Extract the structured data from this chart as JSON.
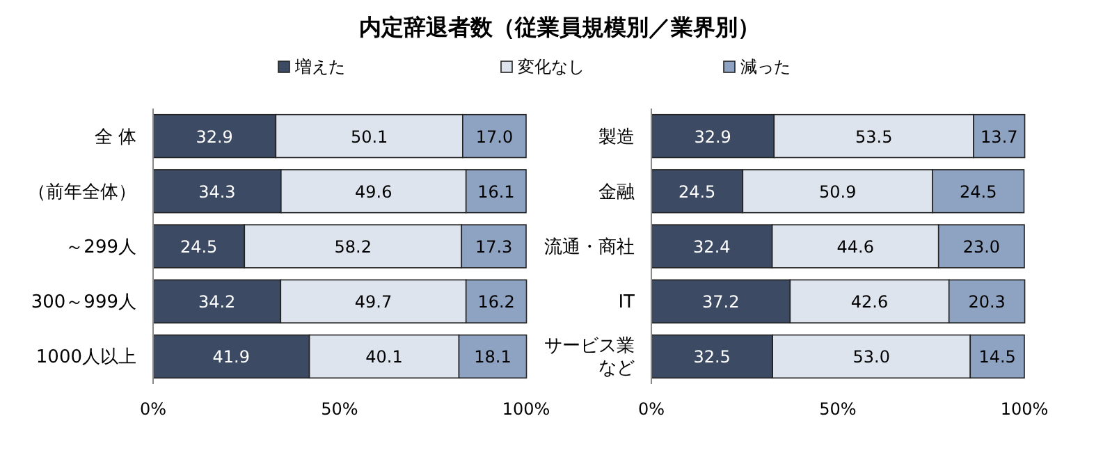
{
  "chart_data": [
    {
      "type": "bar",
      "orientation": "horizontal",
      "stacked": true,
      "title": "内定辞退者数（従業員規模別／業界別）",
      "legend": "top",
      "categories": [
        "全 体",
        "（前年全体）",
        "～299人",
        "300～999人",
        "1000人以上"
      ],
      "series": [
        {
          "name": "増えた",
          "color": "#3c4a64",
          "values": [
            32.9,
            34.3,
            24.5,
            34.2,
            41.9
          ],
          "value_labels": [
            "32.9",
            "34.3",
            "24.5",
            "34.2",
            "41.9"
          ]
        },
        {
          "name": "変化なし",
          "color": "#dde4ed",
          "values": [
            50.1,
            49.6,
            58.2,
            49.7,
            40.1
          ],
          "value_labels": [
            "50.1",
            "49.6",
            "58.2",
            "49.7",
            "40.1"
          ]
        },
        {
          "name": "減った",
          "color": "#8ea2c1",
          "values": [
            17.0,
            16.1,
            17.3,
            16.2,
            18.1
          ],
          "value_labels": [
            "17.0",
            "16.1",
            "17.3",
            "16.2",
            "18.1"
          ]
        }
      ],
      "xlim": [
        0,
        100
      ],
      "xticks": [
        {
          "value": 0,
          "label": "0%"
        },
        {
          "value": 50,
          "label": "50%"
        },
        {
          "value": 100,
          "label": "100%"
        }
      ]
    },
    {
      "type": "bar",
      "orientation": "horizontal",
      "stacked": true,
      "categories": [
        "製造",
        "金融",
        "流通・商社",
        "IT",
        "サービス業など"
      ],
      "series": [
        {
          "color": "#3c4a64",
          "values": [
            32.9,
            24.5,
            32.4,
            37.2,
            32.5
          ],
          "value_labels": [
            "32.9",
            "24.5",
            "32.4",
            "37.2",
            "32.5"
          ]
        },
        {
          "color": "#dde4ed",
          "values": [
            53.5,
            50.9,
            44.6,
            42.6,
            53.0
          ],
          "value_labels": [
            "53.5",
            "50.9",
            "44.6",
            "42.6",
            "53.0"
          ]
        },
        {
          "color": "#8ea2c1",
          "values": [
            13.7,
            24.5,
            23.0,
            20.3,
            14.5
          ],
          "value_labels": [
            "13.7",
            "24.5",
            "23.0",
            "20.3",
            "14.5"
          ]
        }
      ],
      "xlim": [
        0,
        100
      ],
      "xticks": [
        {
          "value": 0,
          "label": "0%"
        },
        {
          "value": 50,
          "label": "50%"
        },
        {
          "value": 100,
          "label": "100%"
        }
      ]
    }
  ]
}
